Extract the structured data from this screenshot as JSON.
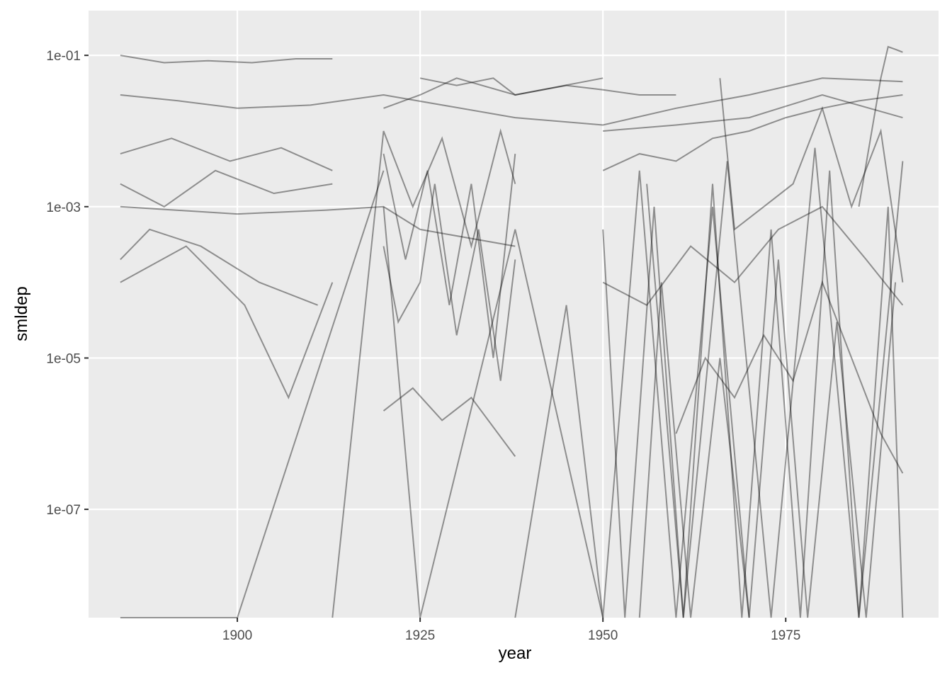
{
  "chart_data": {
    "type": "line",
    "x_label": "year",
    "y_label": "smldep",
    "xlim": [
      1879.65,
      1995.9
    ],
    "xticks": [
      1900,
      1925,
      1950,
      1975
    ],
    "ylim": [
      3.7e-09,
      0.39
    ],
    "y_log": true,
    "yticks": [
      {
        "value": 1e-07,
        "label": "1e-07"
      },
      {
        "value": 1e-05,
        "label": "1e-05"
      },
      {
        "value": 0.001,
        "label": "1e-03"
      },
      {
        "value": 0.1,
        "label": "1e-01"
      }
    ],
    "grid": true,
    "color": "#000000",
    "alpha": 0.4,
    "series": [
      {
        "x": [
          1884,
          1890,
          1896,
          1902,
          1908,
          1913
        ],
        "values": [
          0.1,
          0.08,
          0.085,
          0.08,
          0.09,
          0.09
        ]
      },
      {
        "x": [
          1884,
          1892,
          1900,
          1910,
          1920,
          1938,
          1950,
          1960,
          1970,
          1980,
          1991
        ],
        "values": [
          0.03,
          0.025,
          0.02,
          0.022,
          0.03,
          0.015,
          0.012,
          0.02,
          0.03,
          0.05,
          0.045
        ]
      },
      {
        "x": [
          1884,
          1890,
          1897,
          1905,
          1913
        ],
        "values": [
          0.002,
          0.001,
          0.003,
          0.0015,
          0.002
        ]
      },
      {
        "x": [
          1884,
          1888,
          1895,
          1903,
          1911
        ],
        "values": [
          0.0002,
          0.0005,
          0.0003,
          0.0001,
          5e-05
        ]
      },
      {
        "x": [
          1884,
          1891,
          1899,
          1906,
          1913
        ],
        "values": [
          0.005,
          0.008,
          0.004,
          0.006,
          0.003
        ]
      },
      {
        "x": [
          1884,
          1893,
          1901,
          1907,
          1913
        ],
        "values": [
          0.0001,
          0.0003,
          5e-05,
          3e-06,
          0.0001
        ]
      },
      {
        "x": [
          1884,
          1900,
          1912,
          1920,
          1925,
          1938
        ],
        "values": [
          0.001,
          0.0008,
          0.0009,
          0.001,
          0.0005,
          0.0003
        ]
      },
      {
        "x": [
          1920,
          1923,
          1926,
          1929,
          1932,
          1935,
          1938
        ],
        "values": [
          0.005,
          0.0002,
          0.003,
          5e-05,
          0.002,
          1e-05,
          0.005
        ]
      },
      {
        "x": [
          1920,
          1922,
          1925,
          1927,
          1930,
          1933,
          1936,
          1938
        ],
        "values": [
          0.0003,
          3e-05,
          0.0001,
          0.002,
          2e-05,
          0.0005,
          5e-06,
          0.0002
        ]
      },
      {
        "x": [
          1913,
          1920,
          1924,
          1928,
          1932,
          1936,
          1938
        ],
        "values": [
          0,
          0.01,
          0.001,
          0.008,
          0.0003,
          0.01,
          0.002
        ]
      },
      {
        "x": [
          1920,
          1924,
          1928,
          1932,
          1938
        ],
        "values": [
          2e-06,
          4e-06,
          1.5e-06,
          3e-06,
          5e-07
        ]
      },
      {
        "x": [
          1920,
          1925,
          1930,
          1938,
          1950
        ],
        "values": [
          0.02,
          0.03,
          0.05,
          0.03,
          0.05
        ]
      },
      {
        "x": [
          1920,
          1925,
          1938,
          1950
        ],
        "values": [
          0.001,
          0,
          0.0005,
          0
        ]
      },
      {
        "x": [
          1938,
          1945,
          1950,
          1955,
          1960,
          1965,
          1970
        ],
        "values": [
          0,
          5e-05,
          0,
          0.003,
          0,
          0.001,
          0
        ]
      },
      {
        "x": [
          1950,
          1955,
          1960,
          1965,
          1970,
          1975,
          1980,
          1985,
          1991
        ],
        "values": [
          0.003,
          0.005,
          0.004,
          0.008,
          0.01,
          0.015,
          0.02,
          0.025,
          0.03
        ]
      },
      {
        "x": [
          1950,
          1953,
          1957,
          1961,
          1965,
          1969,
          1973,
          1977,
          1981,
          1985,
          1989,
          1991
        ],
        "values": [
          0.0005,
          0,
          0.001,
          0,
          0.002,
          0,
          0.0005,
          0,
          0.003,
          0,
          0.001,
          0
        ]
      },
      {
        "x": [
          1955,
          1958,
          1962,
          1966,
          1970,
          1974,
          1978,
          1982,
          1986,
          1990
        ],
        "values": [
          0,
          0.0001,
          0,
          1e-05,
          0,
          0.0002,
          0,
          3e-05,
          0,
          0.0001
        ]
      },
      {
        "x": [
          1950,
          1956,
          1962,
          1968,
          1974,
          1980,
          1986,
          1991
        ],
        "values": [
          0.0001,
          5e-05,
          0.0003,
          0.0001,
          0.0005,
          0.001,
          0.0002,
          5e-05
        ]
      },
      {
        "x": [
          1960,
          1964,
          1968,
          1972,
          1976,
          1980,
          1984,
          1988,
          1991
        ],
        "values": [
          1e-06,
          1e-05,
          3e-06,
          2e-05,
          5e-06,
          0.0001,
          1e-05,
          1e-06,
          3e-07
        ]
      },
      {
        "x": [
          1956,
          1961,
          1967,
          1973,
          1979,
          1985,
          1991
        ],
        "values": [
          0.002,
          0,
          0.004,
          0,
          0.006,
          0,
          0.004
        ]
      },
      {
        "x": [
          1884,
          1900,
          1920
        ],
        "values": [
          0,
          0,
          0.003
        ]
      },
      {
        "x": [
          1950,
          1960,
          1970,
          1980,
          1991
        ],
        "values": [
          0.01,
          0.012,
          0.015,
          0.03,
          0.015
        ]
      },
      {
        "x": [
          1966,
          1968,
          1972,
          1976,
          1980,
          1984,
          1988,
          1991
        ],
        "values": [
          0.05,
          0.0005,
          0.001,
          0.002,
          0.02,
          0.001,
          0.01,
          0.0001
        ]
      },
      {
        "x": [
          1985,
          1988,
          1989,
          1990,
          1991
        ],
        "values": [
          0.001,
          0.05,
          0.13,
          0.12,
          0.11
        ]
      },
      {
        "x": [
          1925,
          1930,
          1935,
          1938,
          1945,
          1950,
          1955,
          1960
        ],
        "values": [
          0.05,
          0.04,
          0.05,
          0.03,
          0.04,
          0.035,
          0.03,
          0.03
        ]
      }
    ]
  }
}
